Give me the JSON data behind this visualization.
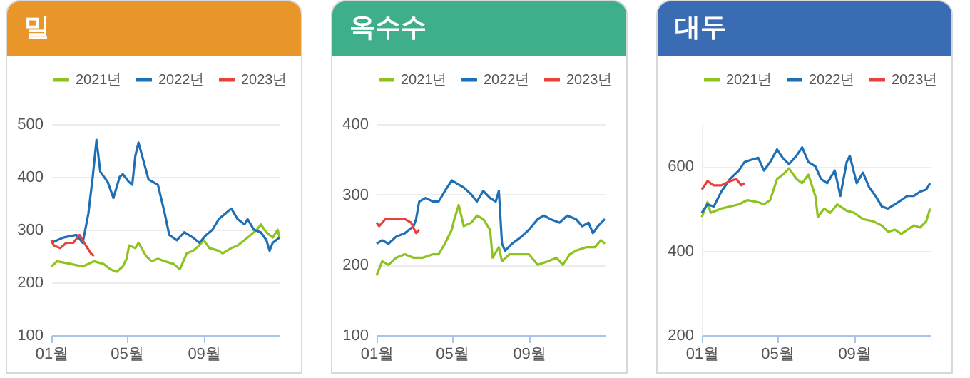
{
  "chart_data": [
    {
      "type": "line",
      "title": "밀",
      "xlim": [
        "--01-01",
        "--12-31"
      ],
      "xticks": [
        {
          "value": "--01-01",
          "label": "01월"
        },
        {
          "value": "--05-01",
          "label": "05월"
        },
        {
          "value": "--09-01",
          "label": "09월"
        }
      ],
      "ylim": [
        100,
        500
      ],
      "yticks": [
        100,
        200,
        300,
        400,
        500
      ],
      "grid": "y",
      "legend": "top",
      "series": [
        {
          "name": "2021년",
          "color": "#8dc21f",
          "x": [
            "--01-01",
            "--01-10",
            "--02-01",
            "--02-20",
            "--03-10",
            "--03-25",
            "--04-05",
            "--04-15",
            "--04-25",
            "--05-01",
            "--05-05",
            "--05-15",
            "--05-20",
            "--06-01",
            "--06-10",
            "--06-20",
            "--07-01",
            "--07-15",
            "--07-25",
            "--08-05",
            "--08-15",
            "--08-25",
            "--09-01",
            "--09-10",
            "--09-25",
            "--10-01",
            "--10-15",
            "--10-25",
            "--11-05",
            "--11-15",
            "--11-25",
            "--12-01",
            "--12-10",
            "--12-20",
            "--12-28",
            "--12-31"
          ],
          "values": [
            230,
            240,
            235,
            230,
            240,
            235,
            225,
            220,
            230,
            245,
            270,
            265,
            275,
            250,
            240,
            245,
            240,
            235,
            225,
            255,
            260,
            270,
            280,
            265,
            260,
            255,
            265,
            270,
            280,
            290,
            300,
            310,
            295,
            285,
            300,
            285
          ]
        },
        {
          "name": "2022년",
          "color": "#1f6fb5",
          "x": [
            "--01-01",
            "--01-20",
            "--02-10",
            "--02-20",
            "--03-01",
            "--03-08",
            "--03-14",
            "--03-20",
            "--04-01",
            "--04-10",
            "--04-20",
            "--04-25",
            "--05-05",
            "--05-10",
            "--05-15",
            "--05-20",
            "--05-28",
            "--06-05",
            "--06-20",
            "--07-01",
            "--07-08",
            "--07-20",
            "--08-01",
            "--08-15",
            "--08-25",
            "--09-05",
            "--09-15",
            "--09-25",
            "--10-05",
            "--10-15",
            "--10-25",
            "--11-05",
            "--11-10",
            "--11-20",
            "--12-01",
            "--12-10",
            "--12-15",
            "--12-20",
            "--12-31"
          ],
          "values": [
            275,
            285,
            290,
            275,
            330,
            400,
            470,
            410,
            390,
            360,
            400,
            405,
            390,
            385,
            440,
            465,
            430,
            395,
            385,
            330,
            290,
            280,
            295,
            285,
            275,
            290,
            300,
            320,
            330,
            340,
            320,
            310,
            320,
            300,
            295,
            280,
            260,
            275,
            285
          ]
        },
        {
          "name": "2023년",
          "color": "#e8413c",
          "x": [
            "--01-01",
            "--01-05",
            "--01-15",
            "--01-25",
            "--02-05",
            "--02-15",
            "--02-25",
            "--03-05",
            "--03-10"
          ],
          "values": [
            280,
            270,
            265,
            275,
            275,
            290,
            270,
            255,
            250
          ]
        }
      ]
    },
    {
      "type": "line",
      "title": "옥수수",
      "xlim": [
        "--01-01",
        "--12-31"
      ],
      "xticks": [
        {
          "value": "--01-01",
          "label": "01월"
        },
        {
          "value": "--05-01",
          "label": "05월"
        },
        {
          "value": "--09-01",
          "label": "09월"
        }
      ],
      "ylim": [
        100,
        400
      ],
      "yticks": [
        100,
        200,
        300,
        400
      ],
      "grid": "y",
      "legend": "top",
      "series": [
        {
          "name": "2021년",
          "color": "#8dc21f",
          "x": [
            "--01-01",
            "--01-10",
            "--01-20",
            "--02-01",
            "--02-15",
            "--03-01",
            "--03-15",
            "--04-01",
            "--04-10",
            "--04-20",
            "--05-01",
            "--05-05",
            "--05-12",
            "--05-20",
            "--06-01",
            "--06-10",
            "--06-20",
            "--07-01",
            "--07-05",
            "--07-15",
            "--07-20",
            "--08-01",
            "--08-15",
            "--09-01",
            "--09-15",
            "--10-01",
            "--10-15",
            "--10-25",
            "--11-05",
            "--11-15",
            "--12-01",
            "--12-15",
            "--12-25",
            "--12-31"
          ],
          "values": [
            185,
            205,
            200,
            210,
            215,
            210,
            210,
            215,
            215,
            230,
            250,
            265,
            285,
            255,
            260,
            270,
            265,
            250,
            210,
            225,
            205,
            215,
            215,
            215,
            200,
            205,
            210,
            200,
            215,
            220,
            225,
            225,
            235,
            230
          ]
        },
        {
          "name": "2022년",
          "color": "#1f6fb5",
          "x": [
            "--01-01",
            "--01-10",
            "--01-20",
            "--02-01",
            "--02-15",
            "--03-01",
            "--03-05",
            "--03-10",
            "--03-20",
            "--04-01",
            "--04-10",
            "--04-20",
            "--05-01",
            "--05-10",
            "--05-20",
            "--06-01",
            "--06-10",
            "--06-20",
            "--07-01",
            "--07-10",
            "--07-15",
            "--07-20",
            "--07-25",
            "--08-05",
            "--08-20",
            "--09-01",
            "--09-15",
            "--09-25",
            "--10-05",
            "--10-20",
            "--11-01",
            "--11-15",
            "--11-25",
            "--12-05",
            "--12-12",
            "--12-20",
            "--12-31"
          ],
          "values": [
            230,
            235,
            230,
            240,
            245,
            255,
            265,
            290,
            295,
            290,
            290,
            305,
            320,
            315,
            310,
            300,
            290,
            305,
            295,
            290,
            305,
            230,
            220,
            230,
            240,
            250,
            265,
            270,
            265,
            260,
            270,
            265,
            255,
            260,
            245,
            255,
            265
          ]
        },
        {
          "name": "2023년",
          "color": "#e8413c",
          "x": [
            "--01-01",
            "--01-05",
            "--01-15",
            "--02-01",
            "--02-15",
            "--02-25",
            "--03-05",
            "--03-10"
          ],
          "values": [
            260,
            255,
            265,
            265,
            265,
            260,
            245,
            250
          ]
        }
      ]
    },
    {
      "type": "line",
      "title": "대두",
      "xlim": [
        "--01-01",
        "--12-31"
      ],
      "xticks": [
        {
          "value": "--01-01",
          "label": "01월"
        },
        {
          "value": "--05-01",
          "label": "05월"
        },
        {
          "value": "--09-01",
          "label": "09월"
        }
      ],
      "ylim": [
        200,
        700
      ],
      "yticks": [
        200,
        400,
        600
      ],
      "grid": "y",
      "legend": "top",
      "series": [
        {
          "name": "2021년",
          "color": "#8dc21f",
          "x": [
            "--01-01",
            "--01-10",
            "--01-15",
            "--02-01",
            "--02-15",
            "--03-01",
            "--03-15",
            "--04-01",
            "--04-10",
            "--04-20",
            "--05-01",
            "--05-10",
            "--05-20",
            "--06-01",
            "--06-10",
            "--06-20",
            "--07-01",
            "--07-05",
            "--07-15",
            "--07-25",
            "--08-05",
            "--08-20",
            "--09-01",
            "--09-15",
            "--10-01",
            "--10-15",
            "--10-25",
            "--11-05",
            "--11-15",
            "--11-25",
            "--12-05",
            "--12-15",
            "--12-25",
            "--12-31"
          ],
          "values": [
            480,
            515,
            490,
            500,
            505,
            510,
            520,
            515,
            510,
            520,
            570,
            580,
            595,
            570,
            560,
            580,
            530,
            480,
            500,
            490,
            510,
            495,
            490,
            475,
            470,
            460,
            445,
            450,
            440,
            450,
            460,
            455,
            470,
            500
          ]
        },
        {
          "name": "2022년",
          "color": "#1f6fb5",
          "x": [
            "--01-01",
            "--01-10",
            "--01-20",
            "--02-01",
            "--02-15",
            "--03-01",
            "--03-10",
            "--03-20",
            "--04-01",
            "--04-10",
            "--04-20",
            "--05-01",
            "--05-10",
            "--05-20",
            "--06-01",
            "--06-10",
            "--06-20",
            "--07-01",
            "--07-10",
            "--07-20",
            "--08-01",
            "--08-10",
            "--08-20",
            "--08-25",
            "--09-05",
            "--09-15",
            "--09-25",
            "--10-05",
            "--10-15",
            "--10-25",
            "--11-05",
            "--11-15",
            "--11-25",
            "--12-05",
            "--12-15",
            "--12-25",
            "--12-31"
          ],
          "values": [
            490,
            510,
            505,
            540,
            570,
            590,
            610,
            615,
            620,
            590,
            610,
            640,
            620,
            605,
            625,
            645,
            610,
            600,
            570,
            560,
            590,
            530,
            610,
            625,
            560,
            585,
            550,
            530,
            505,
            500,
            510,
            520,
            530,
            530,
            540,
            545,
            560
          ]
        },
        {
          "name": "2023년",
          "color": "#e8413c",
          "x": [
            "--01-01",
            "--01-10",
            "--01-20",
            "--02-01",
            "--02-15",
            "--02-25",
            "--03-05",
            "--03-10"
          ],
          "values": [
            545,
            565,
            555,
            555,
            565,
            570,
            555,
            560
          ]
        }
      ]
    }
  ]
}
